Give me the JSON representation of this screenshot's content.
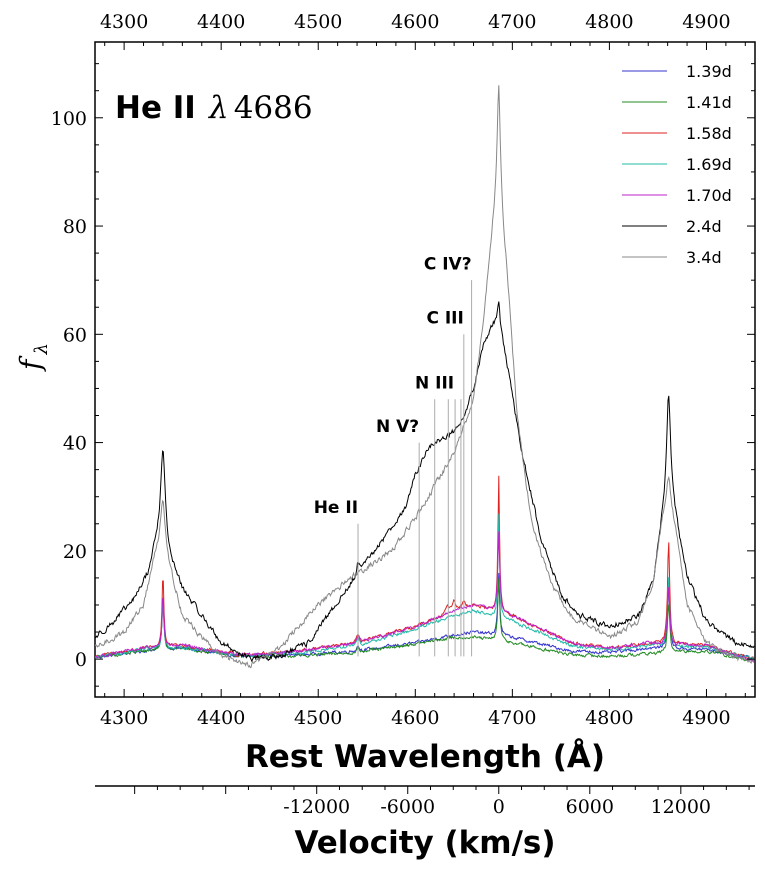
{
  "chart_data": {
    "type": "line",
    "title": {
      "bold": "He II",
      "lambda": "λ",
      "number": "4686"
    },
    "ylabel": {
      "main": "f",
      "sub": "λ"
    },
    "xlabel": "Rest Wavelength (Å)",
    "xlabel2": "Velocity (km/s)",
    "xlim": [
      4270,
      4950
    ],
    "ylim": [
      -7,
      114
    ],
    "x_ticks": [
      4300,
      4400,
      4500,
      4600,
      4700,
      4800,
      4900
    ],
    "x_tick_labels": [
      "4300",
      "4400",
      "4500",
      "4600",
      "4700",
      "4800",
      "4900"
    ],
    "y_ticks": [
      0,
      20,
      40,
      60,
      80,
      100
    ],
    "y_tick_labels": [
      "0",
      "20",
      "40",
      "60",
      "80",
      "100"
    ],
    "velocity_ticks": [
      -12000,
      -6000,
      0,
      6000,
      12000
    ],
    "velocity_tick_labels": [
      "-12000",
      "-6000",
      "0",
      "6000",
      "12000"
    ],
    "velocity_rest_wavelength": 4686,
    "annotations": [
      {
        "label": "He II",
        "wavelength": 4541,
        "line_top": 25,
        "text_y": 27
      },
      {
        "label": "N V?",
        "wavelength": 4604,
        "line_top": 40,
        "text_y": 42
      },
      {
        "label": "N III",
        "wavelength": 4640,
        "line_top": 50,
        "text_y": 50
      },
      {
        "label": "C III",
        "wavelength": 4650,
        "line_top": 60,
        "text_y": 62
      },
      {
        "label": "C IV?",
        "wavelength": 4658,
        "line_top": 70,
        "text_y": 72
      }
    ],
    "marker_lines": [
      4541,
      4604,
      4620,
      4634,
      4641,
      4647,
      4650,
      4658
    ],
    "legend_position": "top-right",
    "series": [
      {
        "name": "1.39d",
        "color": "#3333cc",
        "continuum": [
          [
            4270,
            0.3
          ],
          [
            4320,
            1.5
          ],
          [
            4360,
            2
          ],
          [
            4420,
            0.5
          ],
          [
            4480,
            0.8
          ],
          [
            4540,
            1.5
          ],
          [
            4600,
            3
          ],
          [
            4640,
            4.5
          ],
          [
            4660,
            5
          ],
          [
            4700,
            4
          ],
          [
            4760,
            1.5
          ],
          [
            4800,
            1.2
          ],
          [
            4840,
            2
          ],
          [
            4900,
            1.8
          ],
          [
            4950,
            0
          ]
        ],
        "peaks": [
          [
            4340,
            10,
            1.2
          ],
          [
            4686,
            11.5,
            1.2
          ],
          [
            4861,
            11,
            1.4
          ],
          [
            4541,
            1,
            1.5
          ]
        ],
        "noise": 0.5
      },
      {
        "name": "1.41d",
        "color": "#228b22",
        "continuum": [
          [
            4270,
            0.3
          ],
          [
            4320,
            1.5
          ],
          [
            4360,
            2
          ],
          [
            4420,
            0.5
          ],
          [
            4480,
            0.6
          ],
          [
            4540,
            1.2
          ],
          [
            4600,
            2.8
          ],
          [
            4640,
            4
          ],
          [
            4660,
            4
          ],
          [
            4700,
            3
          ],
          [
            4760,
            0.8
          ],
          [
            4800,
            0.5
          ],
          [
            4840,
            1
          ],
          [
            4900,
            1.5
          ],
          [
            4950,
            -0.5
          ]
        ],
        "peaks": [
          [
            4340,
            9,
            1.2
          ],
          [
            4686,
            11.5,
            1.2
          ],
          [
            4861,
            9,
            1.4
          ],
          [
            4541,
            1,
            1.5
          ]
        ],
        "noise": 0.5
      },
      {
        "name": "1.58d",
        "color": "#dd2222",
        "continuum": [
          [
            4270,
            0.5
          ],
          [
            4320,
            2
          ],
          [
            4360,
            2.5
          ],
          [
            4420,
            0.8
          ],
          [
            4480,
            1.5
          ],
          [
            4540,
            3
          ],
          [
            4600,
            6
          ],
          [
            4640,
            9
          ],
          [
            4660,
            10
          ],
          [
            4700,
            8
          ],
          [
            4760,
            3
          ],
          [
            4800,
            2
          ],
          [
            4840,
            3
          ],
          [
            4900,
            2.5
          ],
          [
            4950,
            0
          ]
        ],
        "peaks": [
          [
            4340,
            14,
            1.1
          ],
          [
            4686,
            25,
            1.0
          ],
          [
            4861,
            19,
            1.3
          ],
          [
            4541,
            1.5,
            1.5
          ],
          [
            4633,
            1.5,
            2
          ],
          [
            4640,
            1.5,
            2
          ],
          [
            4650,
            1,
            2
          ]
        ],
        "noise": 0.5
      },
      {
        "name": "1.69d",
        "color": "#22bbaa",
        "continuum": [
          [
            4270,
            0.3
          ],
          [
            4320,
            1.8
          ],
          [
            4360,
            2.2
          ],
          [
            4420,
            0.6
          ],
          [
            4480,
            1.2
          ],
          [
            4540,
            2.5
          ],
          [
            4600,
            5.5
          ],
          [
            4640,
            8
          ],
          [
            4660,
            9
          ],
          [
            4700,
            7
          ],
          [
            4760,
            2.5
          ],
          [
            4800,
            1.8
          ],
          [
            4840,
            2.5
          ],
          [
            4900,
            2.2
          ],
          [
            4950,
            0
          ]
        ],
        "peaks": [
          [
            4340,
            9,
            1.1
          ],
          [
            4686,
            19,
            1.0
          ],
          [
            4861,
            13,
            1.3
          ],
          [
            4541,
            1.5,
            1.5
          ]
        ],
        "noise": 0.5
      },
      {
        "name": "1.70d",
        "color": "#bb22cc",
        "continuum": [
          [
            4270,
            0.4
          ],
          [
            4320,
            2
          ],
          [
            4360,
            2.5
          ],
          [
            4420,
            0.7
          ],
          [
            4480,
            1.5
          ],
          [
            4540,
            3
          ],
          [
            4600,
            6
          ],
          [
            4640,
            9
          ],
          [
            4660,
            10
          ],
          [
            4700,
            8
          ],
          [
            4760,
            3
          ],
          [
            4800,
            2
          ],
          [
            4840,
            3
          ],
          [
            4900,
            2.5
          ],
          [
            4950,
            -0.5
          ]
        ],
        "peaks": [
          [
            4340,
            10,
            1.1
          ],
          [
            4686,
            15,
            1.2
          ],
          [
            4861,
            11,
            1.3
          ],
          [
            4541,
            1.5,
            1.5
          ]
        ],
        "noise": 0.5
      },
      {
        "name": "2.4d",
        "color": "#000000",
        "continuum": [
          [
            4270,
            4
          ],
          [
            4290,
            7
          ],
          [
            4310,
            11
          ],
          [
            4325,
            16
          ],
          [
            4333,
            22
          ],
          [
            4340,
            26
          ],
          [
            4347,
            19
          ],
          [
            4360,
            13
          ],
          [
            4380,
            8
          ],
          [
            4400,
            3
          ],
          [
            4430,
            0
          ],
          [
            4460,
            0.5
          ],
          [
            4490,
            3
          ],
          [
            4510,
            8
          ],
          [
            4530,
            13
          ],
          [
            4550,
            18
          ],
          [
            4570,
            23
          ],
          [
            4590,
            28
          ],
          [
            4600,
            34
          ],
          [
            4610,
            38
          ],
          [
            4620,
            40
          ],
          [
            4640,
            42
          ],
          [
            4650,
            45
          ],
          [
            4660,
            50
          ],
          [
            4670,
            58
          ],
          [
            4680,
            62
          ],
          [
            4686,
            62
          ],
          [
            4695,
            54
          ],
          [
            4710,
            38
          ],
          [
            4730,
            22
          ],
          [
            4750,
            12
          ],
          [
            4770,
            8
          ],
          [
            4800,
            6
          ],
          [
            4830,
            8
          ],
          [
            4845,
            14
          ],
          [
            4855,
            26
          ],
          [
            4861,
            31
          ],
          [
            4868,
            26
          ],
          [
            4880,
            15
          ],
          [
            4900,
            7
          ],
          [
            4930,
            3
          ],
          [
            4950,
            2
          ]
        ],
        "peaks": [
          [
            4340,
            13,
            2.5
          ],
          [
            4686,
            4,
            1.5
          ],
          [
            4861,
            18,
            2.5
          ],
          [
            4541,
            2,
            1.5
          ]
        ],
        "noise": 0.9
      },
      {
        "name": "3.4d",
        "color": "#888888",
        "continuum": [
          [
            4270,
            2
          ],
          [
            4300,
            5
          ],
          [
            4320,
            10
          ],
          [
            4333,
            20
          ],
          [
            4340,
            24
          ],
          [
            4347,
            17
          ],
          [
            4360,
            8
          ],
          [
            4380,
            4
          ],
          [
            4400,
            0.5
          ],
          [
            4430,
            -1
          ],
          [
            4460,
            2
          ],
          [
            4480,
            6
          ],
          [
            4500,
            10
          ],
          [
            4520,
            13
          ],
          [
            4540,
            16
          ],
          [
            4560,
            18
          ],
          [
            4580,
            21
          ],
          [
            4600,
            26
          ],
          [
            4620,
            32
          ],
          [
            4640,
            38
          ],
          [
            4660,
            48
          ],
          [
            4670,
            62
          ],
          [
            4680,
            80
          ],
          [
            4686,
            88
          ],
          [
            4695,
            70
          ],
          [
            4705,
            45
          ],
          [
            4720,
            25
          ],
          [
            4740,
            14
          ],
          [
            4760,
            8
          ],
          [
            4800,
            4
          ],
          [
            4830,
            7
          ],
          [
            4845,
            14
          ],
          [
            4855,
            26
          ],
          [
            4861,
            30
          ],
          [
            4868,
            24
          ],
          [
            4880,
            10
          ],
          [
            4900,
            3
          ],
          [
            4930,
            0
          ],
          [
            4950,
            0
          ]
        ],
        "peaks": [
          [
            4340,
            6,
            2.5
          ],
          [
            4686,
            18,
            2
          ],
          [
            4861,
            4,
            2.5
          ]
        ],
        "noise": 0.9
      }
    ]
  }
}
